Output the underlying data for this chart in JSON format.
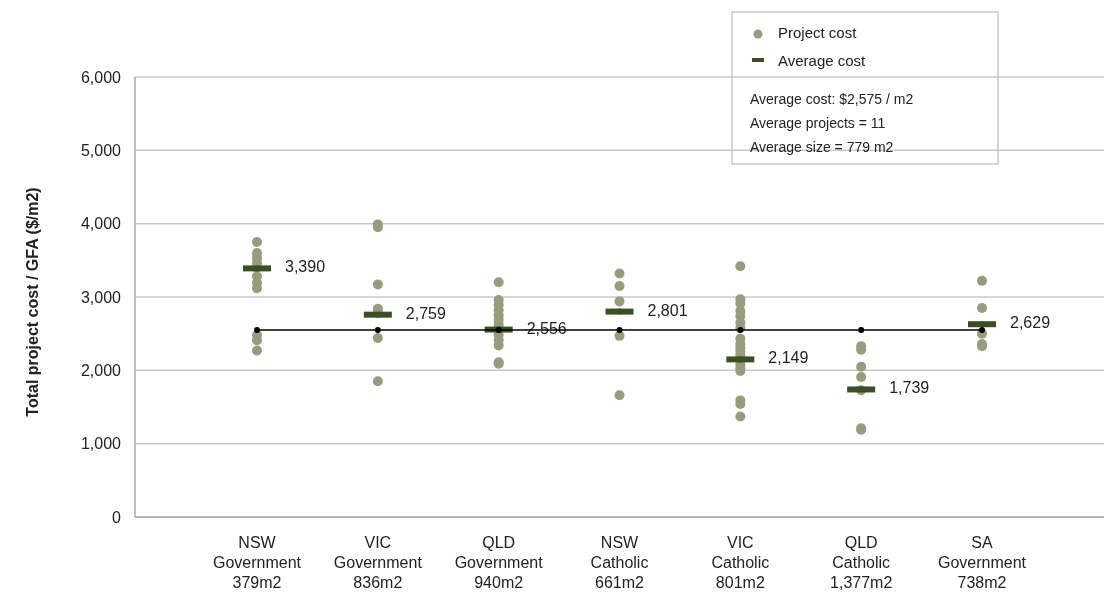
{
  "chart_data": {
    "type": "scatter",
    "ylabel": "Total project cost / GFA ($/m2)",
    "categories": [
      "NSW\nGovernment\n379m2",
      "VIC\nGovernment\n836m2",
      "QLD\nGovernment\n940m2",
      "NSW\nCatholic\n661m2",
      "VIC\nCatholic\n801m2",
      "QLD\nCatholic\n1,377m2",
      "SA\nGovernment\n738m2"
    ],
    "ylim": [
      0,
      6000
    ],
    "yticks": [
      0,
      {
        "value": 1000,
        "label": "1,000"
      },
      {
        "value": 2000,
        "label": "2,000"
      },
      {
        "value": 3000,
        "label": "3,000"
      },
      {
        "value": 4000,
        "label": "4,000"
      },
      {
        "value": 5000,
        "label": "5,000"
      },
      {
        "value": 6000,
        "label": "6,000"
      }
    ],
    "grid": "y",
    "legend": "top right",
    "marker": "circle",
    "series": [
      {
        "name": "Project cost",
        "color": "#999b7d",
        "x": [
          "NSW\nGovernment\n379m2",
          "NSW\nGovernment\n379m2",
          "NSW\nGovernment\n379m2",
          "NSW\nGovernment\n379m2",
          "NSW\nGovernment\n379m2",
          "NSW\nGovernment\n379m2",
          "NSW\nGovernment\n379m2",
          "NSW\nGovernment\n379m2",
          "NSW\nGovernment\n379m2",
          "NSW\nGovernment\n379m2",
          "NSW\nGovernment\n379m2",
          "VIC\nGovernment\n836m2",
          "VIC\nGovernment\n836m2",
          "VIC\nGovernment\n836m2",
          "VIC\nGovernment\n836m2",
          "VIC\nGovernment\n836m2",
          "VIC\nGovernment\n836m2",
          "VIC\nGovernment\n836m2",
          "QLD\nGovernment\n940m2",
          "QLD\nGovernment\n940m2",
          "QLD\nGovernment\n940m2",
          "QLD\nGovernment\n940m2",
          "QLD\nGovernment\n940m2",
          "QLD\nGovernment\n940m2",
          "QLD\nGovernment\n940m2",
          "QLD\nGovernment\n940m2",
          "QLD\nGovernment\n940m2",
          "QLD\nGovernment\n940m2",
          "QLD\nGovernment\n940m2",
          "QLD\nGovernment\n940m2",
          "NSW\nCatholic\n661m2",
          "NSW\nCatholic\n661m2",
          "NSW\nCatholic\n661m2",
          "NSW\nCatholic\n661m2",
          "NSW\nCatholic\n661m2",
          "VIC\nCatholic\n801m2",
          "VIC\nCatholic\n801m2",
          "VIC\nCatholic\n801m2",
          "VIC\nCatholic\n801m2",
          "VIC\nCatholic\n801m2",
          "VIC\nCatholic\n801m2",
          "VIC\nCatholic\n801m2",
          "VIC\nCatholic\n801m2",
          "VIC\nCatholic\n801m2",
          "VIC\nCatholic\n801m2",
          "VIC\nCatholic\n801m2",
          "VIC\nCatholic\n801m2",
          "VIC\nCatholic\n801m2",
          "VIC\nCatholic\n801m2",
          "VIC\nCatholic\n801m2",
          "VIC\nCatholic\n801m2",
          "VIC\nCatholic\n801m2",
          "VIC\nCatholic\n801m2",
          "QLD\nCatholic\n1,377m2",
          "QLD\nCatholic\n1,377m2",
          "QLD\nCatholic\n1,377m2",
          "QLD\nCatholic\n1,377m2",
          "QLD\nCatholic\n1,377m2",
          "QLD\nCatholic\n1,377m2",
          "QLD\nCatholic\n1,377m2",
          "SA\nGovernment\n738m2",
          "SA\nGovernment\n738m2",
          "SA\nGovernment\n738m2",
          "SA\nGovernment\n738m2",
          "SA\nGovernment\n738m2"
        ],
        "values": [
          3750,
          3600,
          3530,
          3460,
          3400,
          3280,
          3190,
          3120,
          2480,
          2410,
          2270,
          3990,
          3950,
          3170,
          2840,
          2820,
          2440,
          1850,
          3200,
          2960,
          2890,
          2820,
          2750,
          2690,
          2620,
          2480,
          2410,
          2340,
          2110,
          2090,
          3320,
          3150,
          2940,
          2470,
          1660,
          3420,
          2970,
          2910,
          2810,
          2740,
          2650,
          2580,
          2430,
          2360,
          2310,
          2260,
          2210,
          2080,
          2030,
          1990,
          1590,
          1540,
          1370,
          2330,
          2280,
          2050,
          1910,
          1730,
          1210,
          1190,
          3220,
          2850,
          2500,
          2360,
          2330
        ]
      },
      {
        "name": "Average cost",
        "type": "scatter",
        "color": "#3a5022",
        "values": [
          3390,
          2759,
          2556,
          2801,
          2149,
          1739,
          2629
        ],
        "value_labels": [
          "3,390",
          "2,759",
          "2,556",
          "2,801",
          "2,149",
          "1,739",
          "2,629"
        ]
      },
      {
        "type": "line",
        "color": "#000000",
        "values": [
          2550,
          2550,
          2550,
          2550,
          2550,
          2550,
          2550
        ]
      }
    ],
    "annotations": [
      "Average cost: $2,575 / m2",
      "Average projects = 11",
      "Average size = 779 m2"
    ]
  }
}
